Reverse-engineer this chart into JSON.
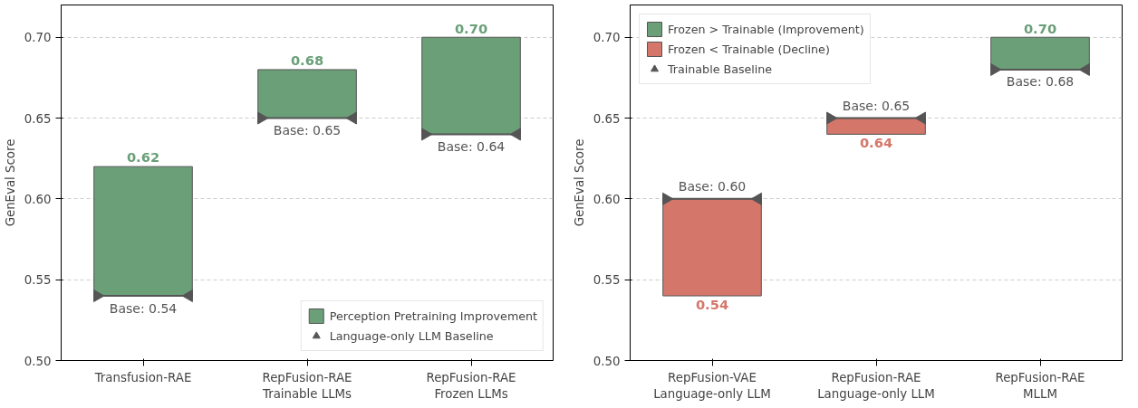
{
  "chart_data": [
    {
      "type": "bar",
      "ylabel": "GenEval Score",
      "categories": [
        "Transfusion-RAE",
        "RepFusion-RAE\nTrainable LLMs",
        "RepFusion-RAE\nFrozen LLMs"
      ],
      "series": [
        {
          "name": "Perception Pretraining Improvement",
          "color": "#6a9f78",
          "base": [
            0.54,
            0.65,
            0.64
          ],
          "values": [
            0.08,
            0.03,
            0.06
          ],
          "value_labels": [
            "0.62",
            "0.68",
            "0.70"
          ]
        },
        {
          "name": "Language-only LLM Baseline",
          "type": "scatter",
          "marker": "triangle",
          "color": "#555555",
          "values": [
            0.54,
            0.65,
            0.64
          ],
          "value_labels": [
            "Base: 0.54",
            "Base: 0.65",
            "Base: 0.64"
          ]
        }
      ],
      "ylim": [
        0.5,
        0.72
      ],
      "yticks": [
        {
          "value": 0.5,
          "label": "0.50"
        },
        {
          "value": 0.55,
          "label": "0.55"
        },
        {
          "value": 0.6,
          "label": "0.60"
        },
        {
          "value": 0.65,
          "label": "0.65"
        },
        {
          "value": 0.7,
          "label": "0.70"
        }
      ],
      "grid": "y",
      "legend": "bottom right"
    },
    {
      "type": "bar",
      "ylabel": "GenEval Score",
      "categories": [
        "RepFusion-VAE\nLanguage-only LLM",
        "RepFusion-RAE\nLanguage-only LLM",
        "RepFusion-RAE\nMLLM"
      ],
      "series": [
        {
          "name": "Frozen > Trainable (Improvement)",
          "color": "#6a9f78",
          "base": [
            null,
            null,
            0.68
          ],
          "values": [
            null,
            null,
            0.02
          ],
          "value_labels": [
            null,
            null,
            "0.70"
          ]
        },
        {
          "name": "Frozen < Trainable (Decline)",
          "color": "#d4766a",
          "base": [
            0.6,
            0.65,
            null
          ],
          "values": [
            -0.06,
            -0.01,
            null
          ],
          "value_labels": [
            "0.54",
            "0.64",
            null
          ]
        },
        {
          "name": "Trainable Baseline",
          "type": "scatter",
          "marker": "triangle",
          "color": "#555555",
          "values": [
            0.6,
            0.65,
            0.68
          ],
          "value_labels": [
            "Base: 0.60",
            "Base: 0.65",
            "Base: 0.68"
          ]
        }
      ],
      "ylim": [
        0.5,
        0.72
      ],
      "yticks": [
        {
          "value": 0.5,
          "label": "0.50"
        },
        {
          "value": 0.55,
          "label": "0.55"
        },
        {
          "value": 0.6,
          "label": "0.60"
        },
        {
          "value": 0.65,
          "label": "0.65"
        },
        {
          "value": 0.7,
          "label": "0.70"
        }
      ],
      "grid": "y",
      "legend": "top left"
    }
  ]
}
